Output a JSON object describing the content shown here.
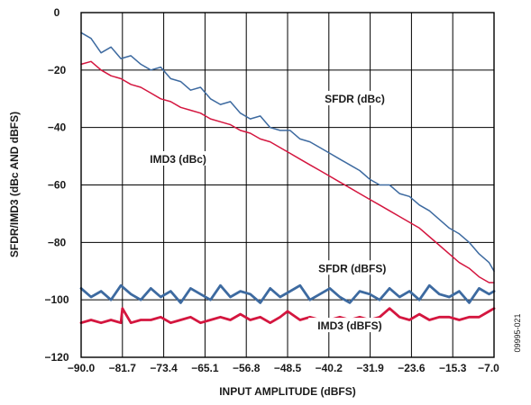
{
  "chart_data": {
    "type": "line",
    "title": "",
    "xlabel": "INPUT AMPLITUDE (dBFS)",
    "ylabel": "SFDR/IMD3 (dBc AND dBFS)",
    "xlim": [
      -90.0,
      -7.0
    ],
    "ylim": [
      -120,
      0
    ],
    "x_ticks": [
      "-90.0",
      "-81.7",
      "-73.4",
      "-65.1",
      "-56.8",
      "-48.5",
      "-40.2",
      "-31.9",
      "-23.6",
      "-15.3",
      "-7.0"
    ],
    "y_ticks": [
      "0",
      "-20",
      "-40",
      "-60",
      "-80",
      "-100",
      "-120"
    ],
    "grid": true,
    "figure_id": "09995-021",
    "series": [
      {
        "name": "SFDR (dBc)",
        "color": "#3d6aa0",
        "x": [
          -90,
          -88,
          -86,
          -84,
          -82,
          -80,
          -78,
          -76,
          -74,
          -72,
          -70,
          -68,
          -66,
          -64,
          -62,
          -60,
          -58,
          -56,
          -54,
          -52,
          -50,
          -48,
          -46,
          -44,
          -42,
          -40,
          -38,
          -36,
          -34,
          -32,
          -30,
          -28,
          -26,
          -24,
          -22,
          -20,
          -18,
          -16,
          -14,
          -12,
          -10,
          -8,
          -7
        ],
        "y": [
          -7,
          -9,
          -14,
          -12,
          -16,
          -15,
          -18,
          -20,
          -19,
          -23,
          -24,
          -27,
          -26,
          -30,
          -32,
          -31,
          -35,
          -37,
          -36,
          -40,
          -41,
          -41,
          -44,
          -45,
          -47,
          -49,
          -51,
          -53,
          -55,
          -58,
          -60,
          -60,
          -63,
          -64,
          -67,
          -69,
          -72,
          -75,
          -77,
          -80,
          -84,
          -87,
          -90
        ]
      },
      {
        "name": "IMD3 (dBc)",
        "color": "#d4163f",
        "x": [
          -90,
          -88,
          -86,
          -84,
          -82,
          -80,
          -78,
          -76,
          -74,
          -72,
          -70,
          -68,
          -66,
          -64,
          -62,
          -60,
          -58,
          -56,
          -54,
          -52,
          -50,
          -48,
          -46,
          -44,
          -42,
          -40,
          -38,
          -36,
          -34,
          -32,
          -30,
          -28,
          -26,
          -24,
          -22,
          -20,
          -18,
          -16,
          -14,
          -12,
          -10,
          -8,
          -7
        ],
        "y": [
          -18,
          -17,
          -20,
          -22,
          -23,
          -25,
          -26,
          -28,
          -30,
          -31,
          -33,
          -34,
          -35,
          -37,
          -38,
          -39,
          -41,
          -42,
          -44,
          -45,
          -47,
          -49,
          -51,
          -53,
          -55,
          -57,
          -59,
          -61,
          -63,
          -65,
          -67,
          -69,
          -71,
          -73,
          -75,
          -78,
          -81,
          -84,
          -87,
          -89,
          -92,
          -94,
          -94
        ]
      },
      {
        "name": "SFDR (dBFS)",
        "color": "#3d6aa0",
        "x": [
          -90,
          -88,
          -86,
          -84,
          -82,
          -80,
          -78,
          -76,
          -74,
          -72,
          -70,
          -68,
          -66,
          -64,
          -62,
          -60,
          -58,
          -56,
          -54,
          -52,
          -50,
          -48,
          -46,
          -44,
          -42,
          -40,
          -38,
          -36,
          -34,
          -32,
          -30,
          -28,
          -26,
          -24,
          -22,
          -20,
          -18,
          -16,
          -14,
          -12,
          -10,
          -8,
          -7
        ],
        "y": [
          -96,
          -99,
          -97,
          -100,
          -95,
          -98,
          -100,
          -96,
          -99,
          -97,
          -101,
          -96,
          -98,
          -100,
          -95,
          -99,
          -97,
          -98,
          -101,
          -96,
          -99,
          -97,
          -95,
          -100,
          -98,
          -96,
          -99,
          -101,
          -97,
          -98,
          -100,
          -96,
          -99,
          -97,
          -100,
          -95,
          -98,
          -99,
          -97,
          -101,
          -96,
          -98,
          -97
        ]
      },
      {
        "name": "IMD3 (dBFS)",
        "color": "#d4163f",
        "x": [
          -90,
          -88,
          -86,
          -84,
          -82,
          -81.7,
          -80,
          -78,
          -76,
          -74,
          -72,
          -70,
          -68,
          -66,
          -64,
          -62,
          -60,
          -58,
          -56,
          -54,
          -52,
          -50,
          -48.5,
          -46,
          -44,
          -42,
          -40,
          -38,
          -36,
          -34,
          -32,
          -30,
          -28,
          -26,
          -24,
          -22,
          -20,
          -18,
          -16,
          -14,
          -12,
          -10,
          -8,
          -7
        ],
        "y": [
          -108,
          -107,
          -108,
          -107,
          -108,
          -103,
          -108,
          -107,
          -107,
          -106,
          -108,
          -107,
          -106,
          -108,
          -107,
          -106,
          -107,
          -105,
          -107,
          -106,
          -108,
          -106,
          -104,
          -107,
          -106,
          -107,
          -107,
          -106,
          -107,
          -106,
          -107,
          -106,
          -103,
          -106,
          -107,
          -105,
          -107,
          -106,
          -106,
          -107,
          -106,
          -106,
          -104,
          -103
        ]
      }
    ],
    "annotations": [
      {
        "text": "SFDR (dBc)",
        "x": -35,
        "y": -31,
        "color": "#1a1a1a"
      },
      {
        "text": "IMD3 (dBc)",
        "x": -70.5,
        "y": -52,
        "color": "#1a1a1a"
      },
      {
        "text": "SFDR (dBFS)",
        "x": -35.5,
        "y": -90,
        "color": "#1a1a1a"
      },
      {
        "text": "IMD3 (dBFS)",
        "x": -36,
        "y": -110,
        "color": "#1a1a1a"
      }
    ]
  }
}
